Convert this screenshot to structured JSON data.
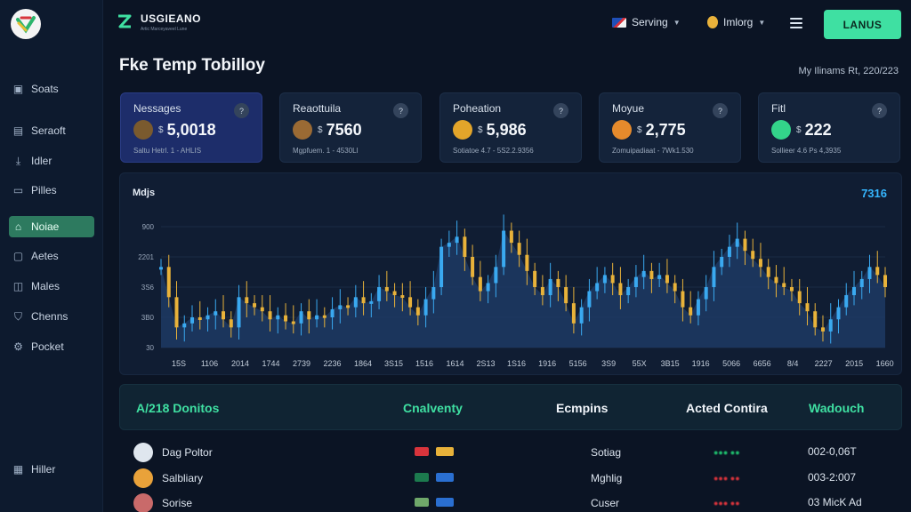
{
  "brand": {
    "name": "USGIEANO",
    "tagline": "Artic Marceyaveel Lune",
    "accent": "#3fe0a2"
  },
  "topbar": {
    "language": "Serving",
    "account": "Imlorg",
    "cta_label": "LANUS"
  },
  "sidebar": {
    "items": [
      {
        "label": "Soats",
        "icon": "wallet-icon"
      },
      {
        "label": "Seraoft",
        "icon": "document-icon"
      },
      {
        "label": "Idler",
        "icon": "download-icon"
      },
      {
        "label": "Pilles",
        "icon": "folder-icon"
      },
      {
        "label": "Noiae",
        "icon": "home-icon",
        "active": true
      },
      {
        "label": "Aetes",
        "icon": "clipboard-icon"
      },
      {
        "label": "Males",
        "icon": "chat-icon"
      },
      {
        "label": "Chenns",
        "icon": "shield-icon"
      },
      {
        "label": "Pocket",
        "icon": "gear-icon"
      }
    ],
    "footer_item": {
      "label": "Hiller",
      "icon": "grid-icon"
    }
  },
  "page": {
    "title": "Fke Temp Tobilloy",
    "meta": "My Ilinams Rt, 220/223"
  },
  "cards": [
    {
      "title": "Nessages",
      "currency": "$",
      "value": "5,0018",
      "sub": "Saltu Hetrl. 1 - AHLIS",
      "emblem": "#7a5a2e"
    },
    {
      "title": "Reaottuila",
      "currency": "$",
      "value": "7560",
      "sub": "Mgpfuem. 1 - 4530Ll",
      "emblem": "#9a6a34"
    },
    {
      "title": "Poheation",
      "currency": "$",
      "value": "5,986",
      "sub": "Sotiatoe 4.7 - 5S2.2.9356",
      "emblem": "#e3a52a"
    },
    {
      "title": "Moyue",
      "currency": "$",
      "value": "2,775",
      "sub": "Zomuipadiaat - 7Wk1.530",
      "emblem": "#e58a2c"
    },
    {
      "title": "Fitl",
      "currency": "$",
      "value": "222",
      "sub": "Sollieer 4.6 Ps 4,3935",
      "emblem": "#33d48a"
    }
  ],
  "chart": {
    "label": "Mdjs",
    "current": "7316"
  },
  "chart_data": {
    "type": "candlestick",
    "y_ticks": [
      "900",
      "2201",
      "3S6",
      "3B0",
      "30"
    ],
    "x_ticks": [
      "15S",
      "1106",
      "2014",
      "1744",
      "2739",
      "2236",
      "1864",
      "3S15",
      "1516",
      "1614",
      "2S13",
      "1S16",
      "1916",
      "5156",
      "3S9",
      "55X",
      "3B15",
      "1916",
      "5066",
      "6656",
      "8/4",
      "2227",
      "2015",
      "1660"
    ],
    "colors": {
      "up": "#3aa9f0",
      "down": "#e8b23a",
      "area": "#1f3d6b"
    },
    "series": [
      {
        "values": [
          50,
          35,
          20,
          22,
          25,
          24,
          26,
          28,
          24,
          20,
          35,
          32,
          30,
          28,
          24,
          26,
          23,
          22,
          28,
          24,
          26,
          25,
          29,
          31,
          30,
          35,
          32,
          33,
          40,
          38,
          36,
          35,
          30,
          26,
          34,
          40,
          60,
          62,
          65,
          55,
          45,
          38,
          42,
          50,
          68,
          62,
          56,
          48,
          40,
          36,
          44,
          40,
          32,
          22,
          30,
          38,
          42,
          46,
          42,
          36,
          40,
          45,
          48,
          44,
          46,
          42,
          38,
          30,
          26,
          34,
          40,
          50,
          55,
          60,
          64,
          58,
          54,
          50,
          45,
          42,
          40,
          38,
          32,
          28,
          20,
          18,
          24,
          30,
          36,
          40,
          44,
          50,
          46,
          40
        ]
      }
    ]
  },
  "table": {
    "headers": [
      "A/218 Donitos",
      "Cnalventy",
      "Ecmpins",
      "Acted Contira",
      "Wadouch"
    ],
    "header_colors": [
      "#3fe0a2",
      "#3fe0a2",
      "#f1f5fa",
      "#f1f5fa",
      "#3fe0a2"
    ],
    "rows": [
      {
        "name": "Dag Poltor",
        "type": "Sotiag",
        "amount": "002-0,06T",
        "avatar": "#dfe6ee"
      },
      {
        "name": "Salbliary",
        "type": "Mghlig",
        "amount": "003-2:007",
        "avatar": "#e9a23a"
      },
      {
        "name": "Sorise",
        "type": "Cuser",
        "amount": "03 MicK Ad",
        "avatar": "#c96a6a"
      }
    ]
  }
}
